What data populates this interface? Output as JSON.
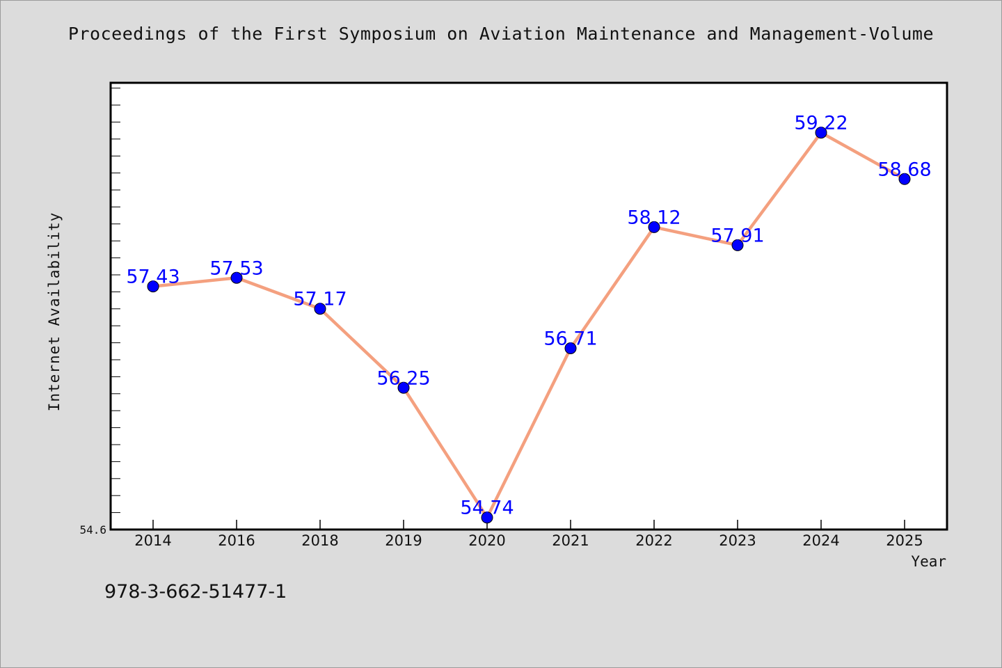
{
  "title": "Proceedings of the First Symposium on Aviation Maintenance and Management-Volume",
  "footer_text": "978-3-662-51477-1",
  "colors": {
    "line": "#f4a07f",
    "marker": "#0000ff",
    "label": "#0000ff",
    "background": "#dcdcdc",
    "plot_bg": "#ffffff"
  },
  "chart_data": {
    "type": "line",
    "title": "Proceedings of the First Symposium on Aviation Maintenance and Management-Volume",
    "xlabel": "Year",
    "ylabel": "Internet Availability",
    "categories": [
      "2014",
      "2016",
      "2018",
      "2019",
      "2020",
      "2021",
      "2022",
      "2023",
      "2024",
      "2025"
    ],
    "series": [
      {
        "values": [
          57.43,
          57.53,
          57.17,
          56.25,
          54.74,
          56.71,
          58.12,
          57.91,
          59.22,
          58.68
        ]
      }
    ],
    "data_labels": [
      "57.43",
      "57.53",
      "57.17",
      "56.25",
      "54.74",
      "56.71",
      "58.12",
      "57.91",
      "59.22",
      "58.68"
    ],
    "y_tick_labels": [
      "54.6"
    ],
    "ylim": [
      54.6,
      59.8
    ],
    "grid": false,
    "legend": "none"
  }
}
